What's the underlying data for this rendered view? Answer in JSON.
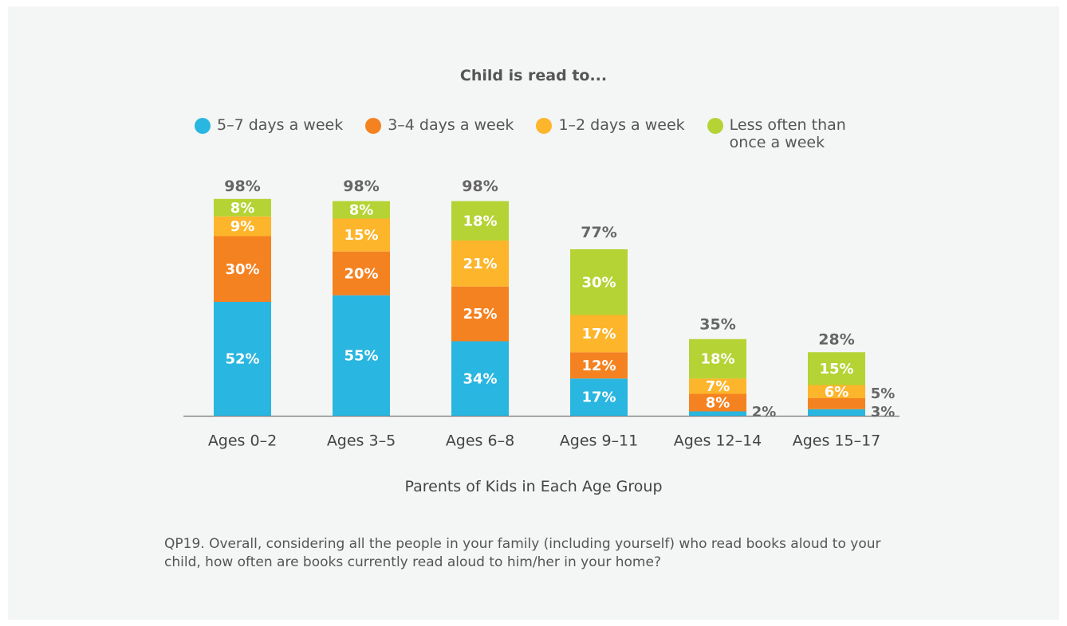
{
  "chart_data": {
    "type": "stacked_bar",
    "title": "Child is read to...",
    "xlabel": "Parents of Kids in Each Age Group",
    "note": "QP19. Overall, considering all the people in your family (including yourself) who read books aloud to your child, how often are books currently read aloud to him/her in your home?",
    "categories": [
      "Ages 0–2",
      "Ages 3–5",
      "Ages 6–8",
      "Ages 9–11",
      "Ages 12–14",
      "Ages 15–17"
    ],
    "series": [
      {
        "name": "5–7 days a week",
        "color": "#29b6e0",
        "values": [
          52,
          55,
          34,
          17,
          2,
          3
        ],
        "value_labels": [
          "52%",
          "55%",
          "34%",
          "17%",
          "2%",
          "3%"
        ]
      },
      {
        "name": "3–4 days a week",
        "color": "#f58220",
        "values": [
          30,
          20,
          25,
          12,
          8,
          5
        ],
        "value_labels": [
          "30%",
          "20%",
          "25%",
          "12%",
          "8%",
          "5%"
        ]
      },
      {
        "name": "1–2 days a week",
        "color": "#fdb52b",
        "values": [
          9,
          15,
          21,
          17,
          7,
          6
        ],
        "value_labels": [
          "9%",
          "15%",
          "21%",
          "17%",
          "7%",
          "6%"
        ]
      },
      {
        "name": "Less often than once a week",
        "color": "#b5d334",
        "values": [
          8,
          8,
          18,
          30,
          18,
          15
        ],
        "value_labels": [
          "8%",
          "8%",
          "18%",
          "30%",
          "18%",
          "15%"
        ]
      }
    ],
    "totals": [
      98,
      98,
      98,
      77,
      35,
      28
    ],
    "total_labels": [
      "98%",
      "98%",
      "98%",
      "77%",
      "35%",
      "28%"
    ]
  }
}
